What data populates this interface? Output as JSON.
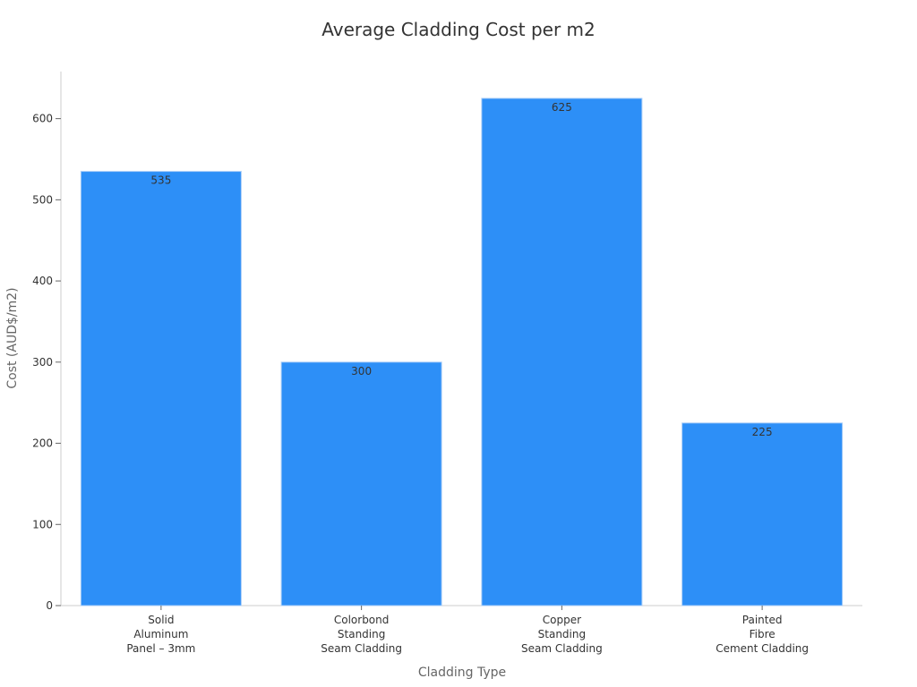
{
  "chart_data": {
    "type": "bar",
    "title": "Average Cladding Cost per m2",
    "xlabel": "Cladding Type",
    "ylabel": "Cost (AUD$/m2)",
    "categories": [
      [
        "Solid",
        "Aluminum",
        "Panel – 3mm"
      ],
      [
        "Colorbond",
        "Standing",
        "Seam Cladding"
      ],
      [
        "Copper",
        "Standing",
        "Seam Cladding"
      ],
      [
        "Painted",
        "Fibre",
        "Cement Cladding"
      ]
    ],
    "values": [
      535,
      300,
      625,
      225
    ],
    "ylim": [
      0,
      658
    ],
    "yticks": [
      0,
      100,
      200,
      300,
      400,
      500,
      600
    ],
    "bar_color": "#2d8ff7",
    "grid": false,
    "legend": "none"
  }
}
